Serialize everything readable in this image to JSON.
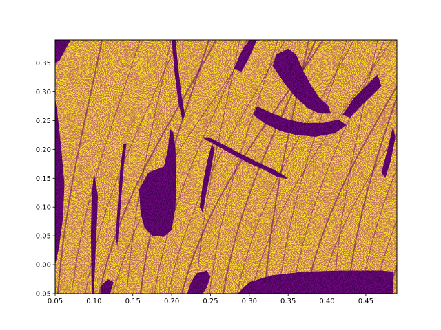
{
  "chart_data": {
    "type": "heatmap",
    "title": "",
    "xlabel": "",
    "ylabel": "",
    "xlim": [
      0.05,
      0.49
    ],
    "ylim": [
      -0.05,
      0.39
    ],
    "grid": false,
    "legend": "none",
    "colormap": "viridis (binary)",
    "colors": {
      "low": "#440154",
      "high": "#fde725"
    },
    "x_ticks": [
      0.05,
      0.1,
      0.15,
      0.2,
      0.25,
      0.3,
      0.35,
      0.4,
      0.45
    ],
    "x_tick_labels": [
      "0.05",
      "0.10",
      "0.15",
      "0.20",
      "0.25",
      "0.30",
      "0.35",
      "0.40",
      "0.45"
    ],
    "y_ticks": [
      -0.05,
      0.0,
      0.05,
      0.1,
      0.15,
      0.2,
      0.25,
      0.3,
      0.35
    ],
    "y_tick_labels": [
      "−0.05",
      "0.00",
      "0.05",
      "0.10",
      "0.15",
      "0.20",
      "0.25",
      "0.30",
      "0.35"
    ],
    "dark_regions": [
      {
        "name": "large-dark-lobe",
        "polygon": [
          [
            0.158,
            0.13
          ],
          [
            0.16,
            0.09
          ],
          [
            0.165,
            0.065
          ],
          [
            0.175,
            0.05
          ],
          [
            0.19,
            0.048
          ],
          [
            0.2,
            0.06
          ],
          [
            0.205,
            0.1
          ],
          [
            0.206,
            0.15
          ],
          [
            0.205,
            0.2
          ],
          [
            0.202,
            0.23
          ],
          [
            0.198,
            0.235
          ],
          [
            0.195,
            0.2
          ],
          [
            0.19,
            0.17
          ],
          [
            0.18,
            0.165
          ],
          [
            0.17,
            0.16
          ]
        ]
      },
      {
        "name": "upper-dark-arc",
        "polygon": [
          [
            0.305,
            0.26
          ],
          [
            0.32,
            0.245
          ],
          [
            0.34,
            0.232
          ],
          [
            0.36,
            0.225
          ],
          [
            0.385,
            0.222
          ],
          [
            0.41,
            0.228
          ],
          [
            0.425,
            0.242
          ],
          [
            0.415,
            0.252
          ],
          [
            0.395,
            0.246
          ],
          [
            0.37,
            0.246
          ],
          [
            0.35,
            0.252
          ],
          [
            0.33,
            0.262
          ],
          [
            0.31,
            0.275
          ]
        ]
      },
      {
        "name": "top-right-dark-arc",
        "polygon": [
          [
            0.33,
            0.345
          ],
          [
            0.345,
            0.315
          ],
          [
            0.36,
            0.29
          ],
          [
            0.375,
            0.272
          ],
          [
            0.39,
            0.262
          ],
          [
            0.405,
            0.262
          ],
          [
            0.402,
            0.275
          ],
          [
            0.39,
            0.29
          ],
          [
            0.38,
            0.31
          ],
          [
            0.37,
            0.335
          ],
          [
            0.36,
            0.365
          ],
          [
            0.35,
            0.375
          ],
          [
            0.335,
            0.365
          ]
        ]
      },
      {
        "name": "middle-dark-band",
        "polygon": [
          [
            0.24,
            0.22
          ],
          [
            0.26,
            0.205
          ],
          [
            0.28,
            0.19
          ],
          [
            0.3,
            0.176
          ],
          [
            0.32,
            0.164
          ],
          [
            0.335,
            0.153
          ],
          [
            0.35,
            0.148
          ],
          [
            0.345,
            0.155
          ],
          [
            0.33,
            0.166
          ],
          [
            0.31,
            0.178
          ],
          [
            0.29,
            0.192
          ],
          [
            0.27,
            0.206
          ],
          [
            0.25,
            0.22
          ]
        ]
      },
      {
        "name": "bottom-right-dark-band",
        "polygon": [
          [
            0.285,
            -0.05
          ],
          [
            0.3,
            -0.03
          ],
          [
            0.33,
            -0.018
          ],
          [
            0.37,
            -0.012
          ],
          [
            0.42,
            -0.01
          ],
          [
            0.47,
            -0.01
          ],
          [
            0.485,
            -0.012
          ],
          [
            0.485,
            -0.05
          ]
        ]
      },
      {
        "name": "bottom-middle-dark-arc",
        "polygon": [
          [
            0.22,
            -0.05
          ],
          [
            0.225,
            -0.03
          ],
          [
            0.232,
            -0.015
          ],
          [
            0.245,
            -0.01
          ],
          [
            0.25,
            -0.02
          ],
          [
            0.245,
            -0.04
          ],
          [
            0.24,
            -0.05
          ]
        ]
      },
      {
        "name": "bottom-left-dark-arc",
        "polygon": [
          [
            0.108,
            -0.05
          ],
          [
            0.11,
            -0.035
          ],
          [
            0.118,
            -0.025
          ],
          [
            0.125,
            -0.03
          ],
          [
            0.122,
            -0.045
          ],
          [
            0.12,
            -0.05
          ]
        ]
      },
      {
        "name": "top-left-dark-corner",
        "polygon": [
          [
            0.05,
            0.39
          ],
          [
            0.05,
            0.35
          ],
          [
            0.056,
            0.355
          ],
          [
            0.062,
            0.37
          ],
          [
            0.07,
            0.39
          ]
        ]
      },
      {
        "name": "left-dark-streak",
        "polygon": [
          [
            0.05,
            0.0
          ],
          [
            0.055,
            0.03
          ],
          [
            0.06,
            0.08
          ],
          [
            0.062,
            0.14
          ],
          [
            0.058,
            0.2
          ],
          [
            0.054,
            0.25
          ],
          [
            0.05,
            0.29
          ]
        ]
      },
      {
        "name": "dark-streak-2",
        "polygon": [
          [
            0.1,
            -0.05
          ],
          [
            0.102,
            0.02
          ],
          [
            0.104,
            0.08
          ],
          [
            0.105,
            0.12
          ],
          [
            0.1,
            0.16
          ],
          [
            0.097,
            0.12
          ],
          [
            0.096,
            0.05
          ],
          [
            0.097,
            -0.05
          ]
        ]
      },
      {
        "name": "dark-streak-3",
        "polygon": [
          [
            0.13,
            0.03
          ],
          [
            0.133,
            0.08
          ],
          [
            0.136,
            0.13
          ],
          [
            0.139,
            0.18
          ],
          [
            0.142,
            0.21
          ],
          [
            0.138,
            0.21
          ],
          [
            0.134,
            0.17
          ],
          [
            0.131,
            0.11
          ],
          [
            0.128,
            0.05
          ]
        ]
      },
      {
        "name": "dark-streak-4",
        "polygon": [
          [
            0.205,
            0.39
          ],
          [
            0.208,
            0.35
          ],
          [
            0.212,
            0.3
          ],
          [
            0.217,
            0.26
          ],
          [
            0.214,
            0.25
          ],
          [
            0.209,
            0.28
          ],
          [
            0.204,
            0.33
          ],
          [
            0.2,
            0.39
          ]
        ]
      },
      {
        "name": "dark-streak-5",
        "polygon": [
          [
            0.236,
            0.1
          ],
          [
            0.24,
            0.14
          ],
          [
            0.246,
            0.18
          ],
          [
            0.252,
            0.21
          ],
          [
            0.255,
            0.2
          ],
          [
            0.25,
            0.16
          ],
          [
            0.244,
            0.12
          ],
          [
            0.24,
            0.09
          ]
        ]
      },
      {
        "name": "dark-streak-6",
        "polygon": [
          [
            0.42,
            0.26
          ],
          [
            0.435,
            0.29
          ],
          [
            0.45,
            0.31
          ],
          [
            0.465,
            0.33
          ],
          [
            0.47,
            0.31
          ],
          [
            0.455,
            0.29
          ],
          [
            0.44,
            0.27
          ],
          [
            0.43,
            0.255
          ]
        ]
      },
      {
        "name": "dark-streak-7",
        "polygon": [
          [
            0.28,
            0.34
          ],
          [
            0.29,
            0.37
          ],
          [
            0.3,
            0.39
          ],
          [
            0.31,
            0.39
          ],
          [
            0.3,
            0.36
          ],
          [
            0.29,
            0.335
          ]
        ]
      },
      {
        "name": "dark-streak-8",
        "polygon": [
          [
            0.47,
            0.16
          ],
          [
            0.478,
            0.2
          ],
          [
            0.485,
            0.24
          ],
          [
            0.488,
            0.22
          ],
          [
            0.482,
            0.18
          ],
          [
            0.475,
            0.15
          ]
        ]
      }
    ]
  }
}
